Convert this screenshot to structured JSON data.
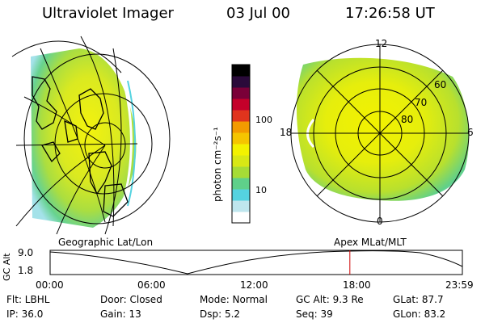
{
  "header": {
    "title": "Ultraviolet Imager",
    "date": "03 Jul 00",
    "time": "17:26:58 UT"
  },
  "geo_panel": {
    "label": "Geographic Lat/Lon"
  },
  "polar_panel": {
    "label": "Apex MLat/MLT",
    "lat_labels": [
      "80",
      "70",
      "60"
    ],
    "mlt_labels": [
      "12",
      "18",
      "6",
      "0"
    ]
  },
  "colorbar": {
    "unit_label": "photon cm⁻²s⁻¹",
    "tick_100": "100",
    "tick_10": "10",
    "colors": [
      "#ffffff",
      "#bfe6ee",
      "#55d3e0",
      "#5fd08a",
      "#a6dc36",
      "#d8e815",
      "#f3f200",
      "#f5c500",
      "#f39a00",
      "#e0341d",
      "#c4002a",
      "#7a0038",
      "#2a0a3a",
      "#000000"
    ]
  },
  "timeline": {
    "axis_label": "GC Alt",
    "tick_hi": "9.0",
    "tick_lo": "1.8",
    "time_labels": [
      "00:00",
      "06:00",
      "12:00",
      "18:00",
      "23:59"
    ],
    "current_time_hours": 17.45,
    "marker_color": "#cc0000"
  },
  "status": {
    "flt": "Flt: LBHL",
    "ip": "IP: 36.0",
    "door": "Door: Closed",
    "gain": "Gain: 13",
    "mode": "Mode: Normal",
    "dsp": "Dsp:     5.2",
    "gc_alt": "GC Alt: 9.3 Re",
    "seq": "Seq: 39",
    "glat": "GLat:  87.7",
    "glon": "GLon:  83.2"
  }
}
